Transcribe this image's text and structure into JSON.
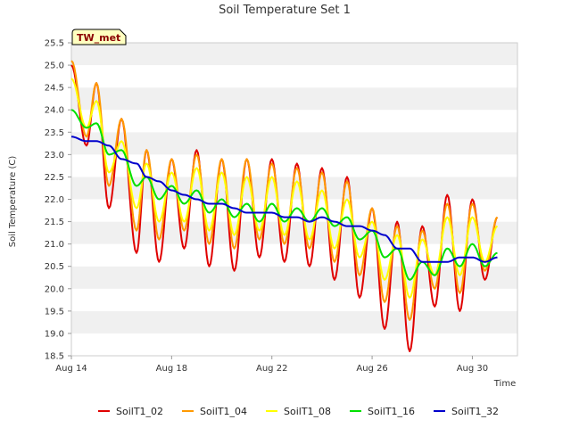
{
  "chart_data": {
    "type": "line",
    "title": "Soil Temperature Set 1",
    "xlabel": "Time",
    "ylabel": "Soil Temperature (C)",
    "tag": "TW_met",
    "ylim": [
      18.5,
      25.5
    ],
    "xlim": [
      "Aug 14",
      "Aug 31.8"
    ],
    "x_ticks": [
      "Aug 14",
      "Aug 18",
      "Aug 22",
      "Aug 26",
      "Aug 30"
    ],
    "y_ticks": [
      "18.5",
      "19.0",
      "19.5",
      "20.0",
      "20.5",
      "21.0",
      "21.5",
      "22.0",
      "22.5",
      "23.0",
      "23.5",
      "24.0",
      "24.5",
      "25.0",
      "25.5"
    ],
    "grid": "horizontal bands",
    "legend_position": "bottom",
    "x_days_approx": [
      14.0,
      14.6,
      15.0,
      15.5,
      16.0,
      16.6,
      17.0,
      17.5,
      18.0,
      18.5,
      19.0,
      19.5,
      20.0,
      20.5,
      21.0,
      21.5,
      22.0,
      22.5,
      23.0,
      23.5,
      24.0,
      24.5,
      25.0,
      25.5,
      26.0,
      26.5,
      27.0,
      27.5,
      28.0,
      28.5,
      29.0,
      29.5,
      30.0,
      30.5,
      31.0
    ],
    "series": [
      {
        "name": "SoilT1_02",
        "color": "#e00000",
        "values": [
          25.0,
          23.2,
          24.6,
          21.8,
          23.8,
          20.8,
          23.1,
          20.6,
          22.9,
          20.9,
          23.1,
          20.5,
          22.9,
          20.4,
          22.9,
          20.7,
          22.9,
          20.6,
          22.8,
          20.5,
          22.7,
          20.2,
          22.5,
          19.8,
          21.8,
          19.1,
          21.5,
          18.6,
          21.4,
          19.6,
          22.1,
          19.5,
          22.0,
          20.2,
          21.6
        ]
      },
      {
        "name": "SoilT1_04",
        "color": "#ff9900",
        "values": [
          25.1,
          23.4,
          24.6,
          22.3,
          23.8,
          21.3,
          23.1,
          21.1,
          22.9,
          21.3,
          23.0,
          21.0,
          22.9,
          20.9,
          22.9,
          21.1,
          22.8,
          21.0,
          22.7,
          20.9,
          22.6,
          20.6,
          22.4,
          20.3,
          21.8,
          19.7,
          21.4,
          19.3,
          21.3,
          20.0,
          21.9,
          19.9,
          21.9,
          20.4,
          21.6
        ]
      },
      {
        "name": "SoilT1_08",
        "color": "#ffff00",
        "values": [
          24.7,
          23.6,
          24.2,
          22.6,
          23.3,
          21.8,
          22.8,
          21.5,
          22.6,
          21.5,
          22.7,
          21.3,
          22.6,
          21.2,
          22.5,
          21.3,
          22.5,
          21.2,
          22.4,
          21.1,
          22.2,
          20.9,
          22.0,
          20.7,
          21.5,
          20.2,
          21.2,
          19.8,
          21.1,
          20.3,
          21.6,
          20.3,
          21.6,
          20.6,
          21.4
        ]
      },
      {
        "name": "SoilT1_16",
        "color": "#00e000",
        "values": [
          24.0,
          23.6,
          23.7,
          23.0,
          23.1,
          22.3,
          22.5,
          22.0,
          22.3,
          21.9,
          22.2,
          21.7,
          22.0,
          21.6,
          21.9,
          21.5,
          21.9,
          21.5,
          21.8,
          21.5,
          21.8,
          21.4,
          21.6,
          21.1,
          21.3,
          20.7,
          20.9,
          20.2,
          20.6,
          20.3,
          20.9,
          20.5,
          21.0,
          20.5,
          20.8
        ]
      },
      {
        "name": "SoilT1_32",
        "color": "#0000cc",
        "values": [
          23.4,
          23.3,
          23.3,
          23.2,
          22.9,
          22.8,
          22.5,
          22.4,
          22.2,
          22.1,
          22.0,
          21.9,
          21.9,
          21.8,
          21.7,
          21.7,
          21.7,
          21.6,
          21.6,
          21.5,
          21.6,
          21.5,
          21.4,
          21.4,
          21.3,
          21.2,
          20.9,
          20.9,
          20.6,
          20.6,
          20.6,
          20.7,
          20.7,
          20.6,
          20.7
        ]
      }
    ]
  }
}
